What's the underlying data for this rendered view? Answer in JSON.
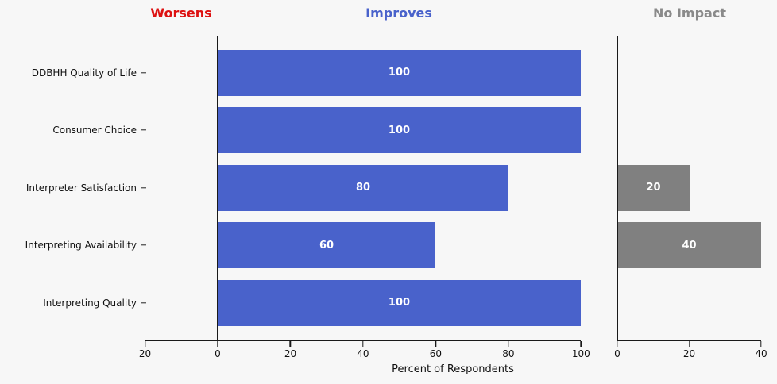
{
  "figure": {
    "background": "#f7f7f7",
    "xlabel": "Percent of Respondents"
  },
  "headers": [
    {
      "id": "worsens",
      "label": "Worsens",
      "color": "#dd1111"
    },
    {
      "id": "improves",
      "label": "Improves",
      "color": "#4962cb"
    },
    {
      "id": "no-impact",
      "label": "No Impact",
      "color": "#8a8a8a"
    }
  ],
  "colors": {
    "improves_bar": "#4962cb",
    "no_impact_bar": "#808080",
    "bar_value_text": "#ffffff",
    "spine": "#1a1a1a"
  },
  "chart_data": {
    "type": "bar",
    "orientation": "horizontal",
    "title": "",
    "xlabel": "Percent of Respondents",
    "ylabel": "",
    "categories": [
      "DDBHH Quality of Life",
      "Consumer Choice",
      "Interpreter Satisfaction",
      "Interpreting Availability",
      "Interpreting Quality"
    ],
    "series": [
      {
        "name": "Improves",
        "color": "#4962cb",
        "values": [
          100,
          100,
          80,
          60,
          100
        ]
      },
      {
        "name": "No Impact",
        "color": "#808080",
        "values": [
          0,
          0,
          20,
          40,
          0
        ]
      },
      {
        "name": "Worsens",
        "color": "#dd1111",
        "values": [
          0,
          0,
          0,
          0,
          0
        ]
      }
    ],
    "bar_value_labels_shown": true,
    "legend_position": "none",
    "grid": false,
    "main_axis": {
      "xlim": [
        -20,
        100
      ],
      "ticks": [
        -20,
        0,
        20,
        40,
        60,
        80,
        100
      ],
      "tick_labels": [
        "20",
        "0",
        "20",
        "40",
        "60",
        "80",
        "100"
      ]
    },
    "impact_axis": {
      "xlim": [
        0,
        40
      ],
      "ticks": [
        0,
        20,
        40
      ],
      "tick_labels": [
        "0",
        "20",
        "40"
      ]
    }
  }
}
